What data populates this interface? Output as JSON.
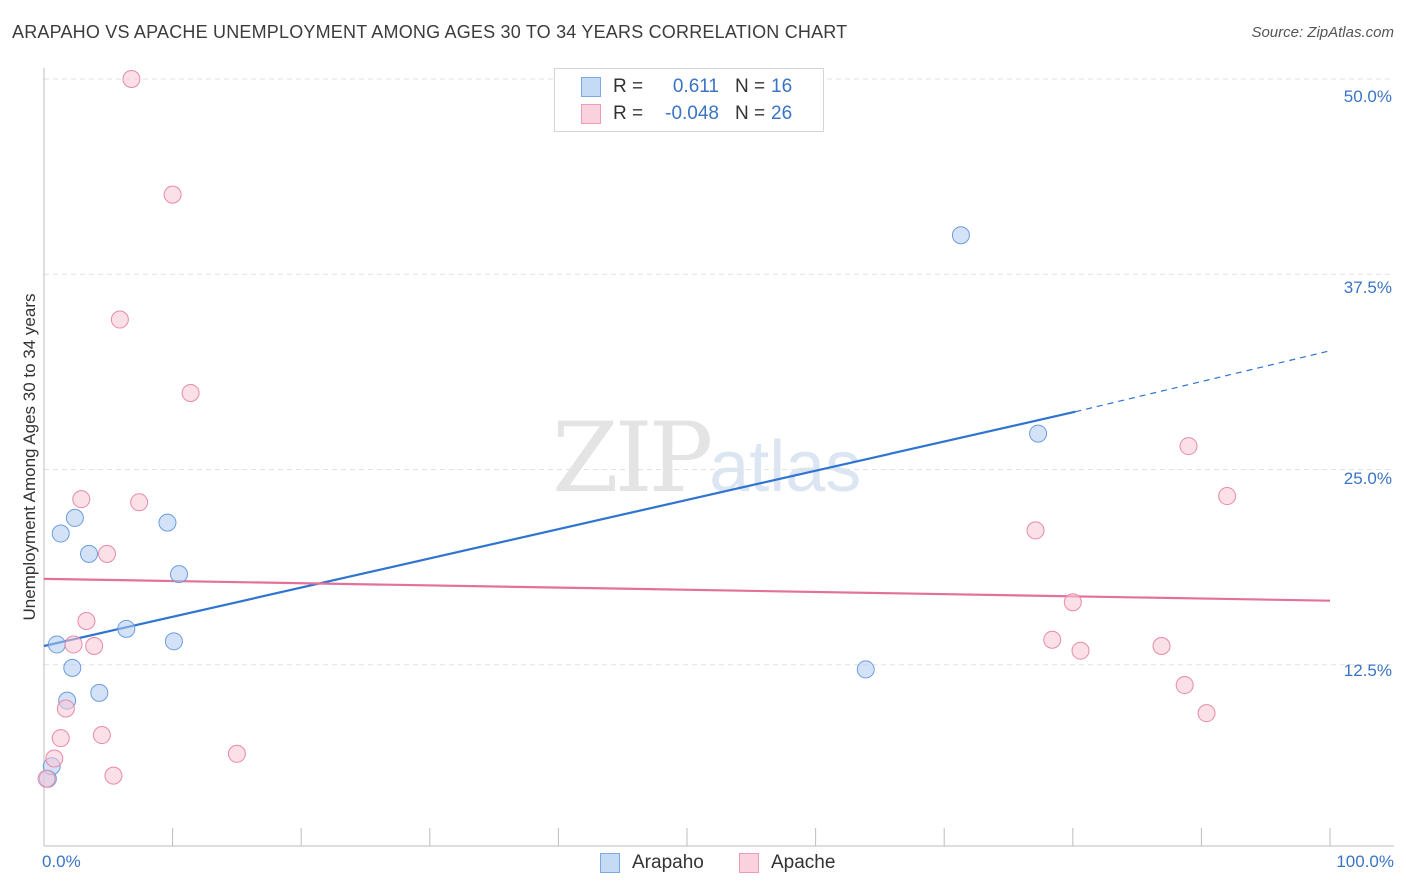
{
  "header": {
    "title": "ARAPAHO VS APACHE UNEMPLOYMENT AMONG AGES 30 TO 34 YEARS CORRELATION CHART",
    "source": "Source: ZipAtlas.com"
  },
  "watermark": {
    "zip": "ZIP",
    "atlas": "atlas"
  },
  "legend_top": {
    "rows": [
      {
        "r_label": "R =",
        "r_value": "0.611",
        "n_label": "N =",
        "n_value": "16",
        "color": "#aecbf0",
        "border": "#6b9de0"
      },
      {
        "r_label": "R =",
        "r_value": "-0.048",
        "n_label": "N =",
        "n_value": "26",
        "color": "#f8c6d5",
        "border": "#e88aa8"
      }
    ]
  },
  "legend_bottom": {
    "items": [
      {
        "label": "Arapaho",
        "color": "#aecbf0",
        "border": "#6b9de0"
      },
      {
        "label": "Apache",
        "color": "#f8c6d5",
        "border": "#e88aa8"
      }
    ]
  },
  "axes": {
    "y_ticks": [
      "12.5%",
      "25.0%",
      "37.5%",
      "50.0%"
    ],
    "x_min_label": "0.0%",
    "x_max_label": "100.0%",
    "y_label": "Unemployment Among Ages 30 to 34 years"
  },
  "chart_data": {
    "type": "scatter",
    "title": "ARAPAHO VS APACHE UNEMPLOYMENT AMONG AGES 30 TO 34 YEARS CORRELATION CHART",
    "xlabel": "",
    "ylabel": "Unemployment Among Ages 30 to 34 years",
    "xlim": [
      0,
      100
    ],
    "ylim": [
      0,
      50
    ],
    "y_ticks": [
      12.5,
      25.0,
      37.5,
      50.0
    ],
    "grid": "horizontal dashed",
    "series": [
      {
        "name": "Arapaho",
        "color": "#6b9de0",
        "fill": "#aecbf0",
        "r": 0.611,
        "n": 16,
        "points": [
          [
            0.3,
            5.2
          ],
          [
            0.6,
            6.0
          ],
          [
            1.0,
            13.8
          ],
          [
            1.3,
            20.9
          ],
          [
            1.8,
            10.2
          ],
          [
            2.2,
            12.3
          ],
          [
            2.4,
            21.9
          ],
          [
            3.5,
            19.6
          ],
          [
            4.3,
            10.7
          ],
          [
            6.4,
            14.8
          ],
          [
            9.6,
            21.6
          ],
          [
            10.1,
            14.0
          ],
          [
            10.5,
            18.3
          ],
          [
            63.9,
            12.2
          ],
          [
            71.3,
            40.0
          ],
          [
            77.3,
            27.3
          ]
        ],
        "trend": {
          "x0": 0,
          "y0": 13.7,
          "x1": 80.2,
          "y1": 28.7,
          "dash_to_x": 100,
          "dash_to_y": 32.6
        }
      },
      {
        "name": "Apache",
        "color": "#e88aa8",
        "fill": "#f8c6d5",
        "r": -0.048,
        "n": 26,
        "points": [
          [
            0.2,
            5.2
          ],
          [
            0.8,
            6.5
          ],
          [
            1.3,
            7.8
          ],
          [
            1.7,
            9.7
          ],
          [
            2.3,
            13.8
          ],
          [
            2.9,
            23.1
          ],
          [
            3.3,
            15.3
          ],
          [
            3.9,
            13.7
          ],
          [
            4.5,
            8.0
          ],
          [
            4.9,
            19.6
          ],
          [
            5.4,
            5.4
          ],
          [
            5.9,
            34.6
          ],
          [
            7.4,
            22.9
          ],
          [
            10.0,
            42.6
          ],
          [
            11.4,
            29.9
          ],
          [
            15.0,
            6.8
          ],
          [
            6.8,
            50.0
          ],
          [
            77.1,
            21.1
          ],
          [
            78.4,
            14.1
          ],
          [
            80.0,
            16.5
          ],
          [
            80.6,
            13.4
          ],
          [
            86.9,
            13.7
          ],
          [
            88.7,
            11.2
          ],
          [
            89.0,
            26.5
          ],
          [
            90.4,
            9.4
          ],
          [
            92.0,
            23.3
          ]
        ],
        "trend": {
          "x0": 0,
          "y0": 18.0,
          "x1": 100,
          "y1": 16.6
        }
      }
    ]
  }
}
